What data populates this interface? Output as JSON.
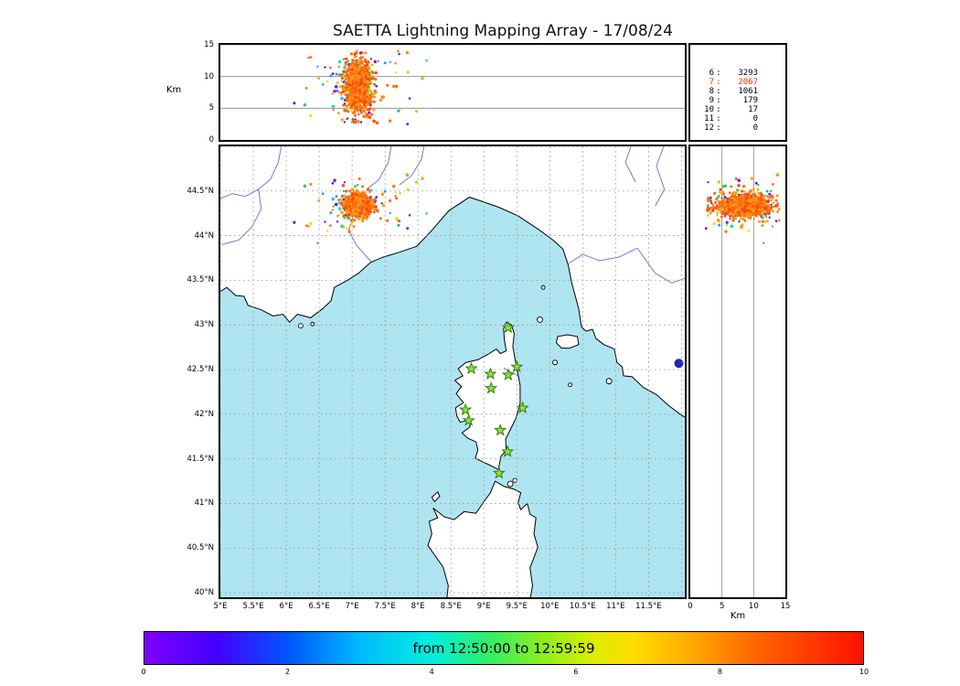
{
  "title": "SAETTA Lightning Mapping Array - 17/08/24",
  "labels": {
    "top_ylabel": "Km",
    "right_xlabel": "Km"
  },
  "chart_data": {
    "type": "scatter",
    "title": "SAETTA Lightning Mapping Array - 17/08/24",
    "subplots": [
      {
        "name": "altitude-vs-longitude",
        "type": "scatter",
        "ylabel": "Km",
        "ylim": [
          0,
          15
        ],
        "yticks": [
          0,
          5,
          10,
          15
        ],
        "xlim": [
          5.0,
          12.05
        ],
        "gridlines_km": [
          5,
          10
        ]
      },
      {
        "name": "map-plan-view",
        "type": "scatter",
        "xlim": [
          5.0,
          12.05
        ],
        "ylim": [
          39.95,
          45.0
        ],
        "xtick_labels": [
          "5°E",
          "5.5°E",
          "6°E",
          "6.5°E",
          "7°E",
          "7.5°E",
          "8°E",
          "8.5°E",
          "9°E",
          "9.5°E",
          "10°E",
          "10.5°E",
          "11°E",
          "11.5°E"
        ],
        "ytick_labels": [
          "40°N",
          "40.5°N",
          "41°N",
          "41.5°N",
          "42°N",
          "42.5°N",
          "43°N",
          "43.5°N",
          "44°N",
          "44.5°N"
        ],
        "grid": true
      },
      {
        "name": "altitude-vs-latitude",
        "type": "scatter",
        "xlabel": "Km",
        "xlim": [
          0,
          15
        ],
        "xticks": [
          0,
          5,
          10,
          15
        ],
        "ylim": [
          39.95,
          45.0
        ],
        "gridlines_km": [
          5,
          10
        ]
      }
    ],
    "station_counts": [
      {
        "station": "6",
        "count": 3293,
        "highlight": false
      },
      {
        "station": "7",
        "count": 2067,
        "highlight": true
      },
      {
        "station": "8",
        "count": 1061,
        "highlight": false
      },
      {
        "station": "9",
        "count": 179,
        "highlight": false
      },
      {
        "station": "10",
        "count": 17,
        "highlight": false
      },
      {
        "station": "11",
        "count": 0,
        "highlight": false
      },
      {
        "station": "12",
        "count": 0,
        "highlight": false
      }
    ],
    "sensor_stations_lon_lat": [
      [
        9.37,
        42.97
      ],
      [
        8.81,
        42.51
      ],
      [
        9.1,
        42.45
      ],
      [
        9.37,
        42.44
      ],
      [
        9.5,
        42.53
      ],
      [
        9.11,
        42.29
      ],
      [
        8.72,
        42.05
      ],
      [
        9.59,
        42.07
      ],
      [
        8.77,
        41.93
      ],
      [
        9.25,
        41.82
      ],
      [
        9.36,
        41.58
      ],
      [
        9.23,
        41.34
      ]
    ],
    "lightning_cluster": {
      "lon_center": 7.08,
      "lat_center": 44.34,
      "lon_sigma": 0.09,
      "lat_sigma": 0.065,
      "alt_mean_km": 8.4,
      "alt_sigma_km": 2.2,
      "alt_min_km": 2.8,
      "alt_max_km": 13.8,
      "n_core": 900,
      "n_outliers": 90,
      "outlier_lon_sigma": 0.45,
      "outlier_lat_sigma": 0.18
    },
    "map_marker_lake_lon_lat": [
      11.96,
      42.57
    ],
    "colorbar": {
      "label": "from 12:50:00 to 12:59:59",
      "ticks": [
        "0",
        "2",
        "4",
        "6",
        "8",
        "10"
      ],
      "range": [
        0,
        10
      ]
    }
  },
  "colors": {
    "sea": "#aee5f0",
    "land": "#ffffff",
    "coastline": "#000000",
    "river": "#6b6bd0",
    "lake": "#2222bb",
    "grid": "#9a9a9a",
    "station_fill": "#8fe332",
    "station_edge": "#2f7d15",
    "highlight_count": "#ff2a00",
    "time_palette_hot": [
      "#ff4500",
      "#ff5f10",
      "#ff7518",
      "#ff8c00",
      "#ffa020"
    ],
    "time_palette_cold": [
      "#7f00ff",
      "#3333ff",
      "#00a0ff",
      "#00d8cc",
      "#2ec84a",
      "#a8e000",
      "#ffd400"
    ]
  }
}
